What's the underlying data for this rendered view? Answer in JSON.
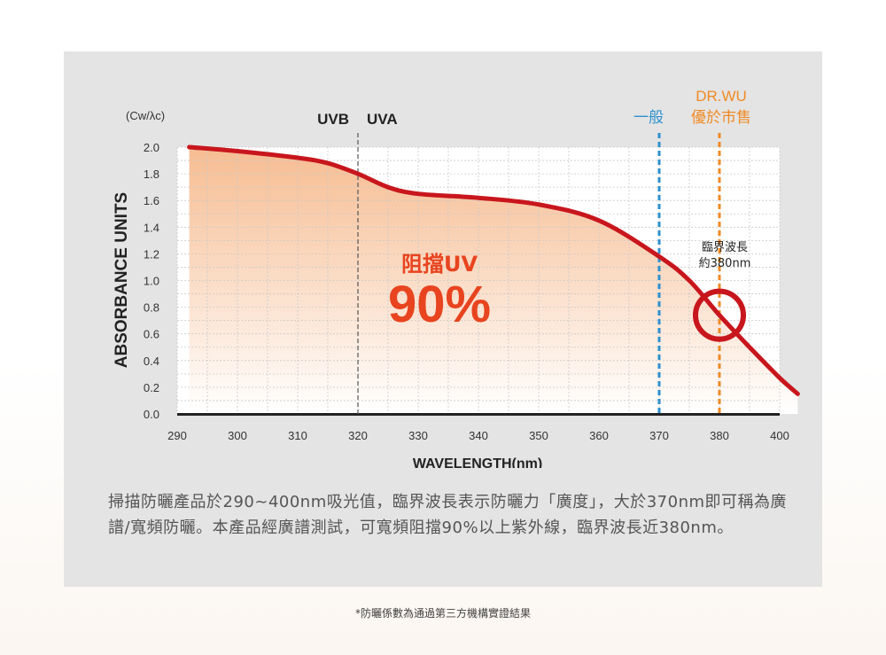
{
  "chart_data": {
    "type": "area",
    "ylabel": "ABSORBANCE UNITS",
    "yunit": "(Cw/λc)",
    "xlabel": "WAVELENGTH(nm)",
    "x_ticks": [
      "290",
      "300",
      "310",
      "320",
      "330",
      "340",
      "350",
      "360",
      "370",
      "380",
      "400"
    ],
    "y_ticks": [
      "0.0",
      "0.2",
      "0.4",
      "0.6",
      "0.8",
      "1.0",
      "1.2",
      "1.4",
      "1.6",
      "1.8",
      "2.0"
    ],
    "ylim": [
      0,
      2.0
    ],
    "grid": true,
    "series": [
      {
        "points": [
          {
            "x": 292,
            "y": 2.0
          },
          {
            "x": 300,
            "y": 1.97
          },
          {
            "x": 310,
            "y": 1.92
          },
          {
            "x": 315,
            "y": 1.88
          },
          {
            "x": 320,
            "y": 1.8
          },
          {
            "x": 325,
            "y": 1.7
          },
          {
            "x": 330,
            "y": 1.65
          },
          {
            "x": 340,
            "y": 1.62
          },
          {
            "x": 350,
            "y": 1.57
          },
          {
            "x": 360,
            "y": 1.45
          },
          {
            "x": 370,
            "y": 1.18
          },
          {
            "x": 375,
            "y": 1.0
          },
          {
            "x": 380,
            "y": 0.74
          },
          {
            "x": 385,
            "y": 0.5
          },
          {
            "x": 390,
            "y": 0.27
          },
          {
            "x": 393,
            "y": 0.15
          }
        ],
        "color": "#c8161d"
      }
    ],
    "annotations": {
      "uvb_label": "UVB",
      "uva_label": "UVA",
      "uvb_uva_boundary": 320,
      "general_label": "一般",
      "general_x": 370,
      "general_color": "#2e8fce",
      "drwu_label": "DR.WU",
      "drwu_sub_label": "優於市售",
      "drwu_x": 380,
      "drwu_color": "#f08a24",
      "critical_line1": "臨界波長",
      "critical_line2": "約380nm",
      "block_label": "阻擋UV",
      "block_value": "90%",
      "block_color": "#e8441f"
    }
  },
  "description": "掃描防曬產品於290~400nm吸光值，臨界波長表示防曬力「廣度」，大於370nm即可稱為廣譜/寬頻防曬。本產品經廣譜測試，可寬頻阻擋90%以上紫外線，臨界波長近380nm。",
  "footnote": "*防曬係數為通過第三方機構實證結果"
}
